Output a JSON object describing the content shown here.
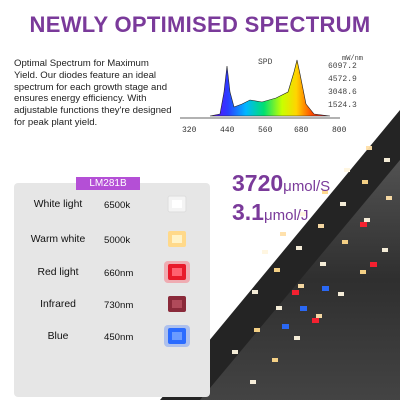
{
  "header": {
    "title": "NEWLY OPTIMISED SPECTRUM"
  },
  "description": {
    "text": "Optimal Spectrum for Maximum Yield. Our diodes feature an ideal spectrum for each growth stage and ensures energy efficiency. With adjustable functions they're designed for peak plant yield."
  },
  "spd_chart": {
    "label": "SPD",
    "unit": "mW/nm",
    "y_ticks": [
      "6097.2",
      "4572.9",
      "3048.6",
      "1524.3"
    ],
    "x_ticks": [
      "320",
      "440",
      "560",
      "680",
      "800"
    ]
  },
  "led_card": {
    "label": "LM281B",
    "rows": [
      {
        "name": "White light",
        "value": "6500k",
        "color": "#f4f4f4"
      },
      {
        "name": "Warm white",
        "value": "5000k",
        "color": "#ffd98a"
      },
      {
        "name": "Red light",
        "value": "660nm",
        "color": "#e8192a"
      },
      {
        "name": "Infrared",
        "value": "730nm",
        "color": "#8a2a3a"
      },
      {
        "name": "Blue",
        "value": "450nm",
        "color": "#2a6bff"
      }
    ]
  },
  "metrics": {
    "ppf_value": "3720",
    "ppf_unit": "μmol/S",
    "efficacy_value": "3.1",
    "efficacy_unit": "μmol/J"
  },
  "colors": {
    "accent": "#7a3a9a",
    "label_bg": "#b44fd6"
  }
}
